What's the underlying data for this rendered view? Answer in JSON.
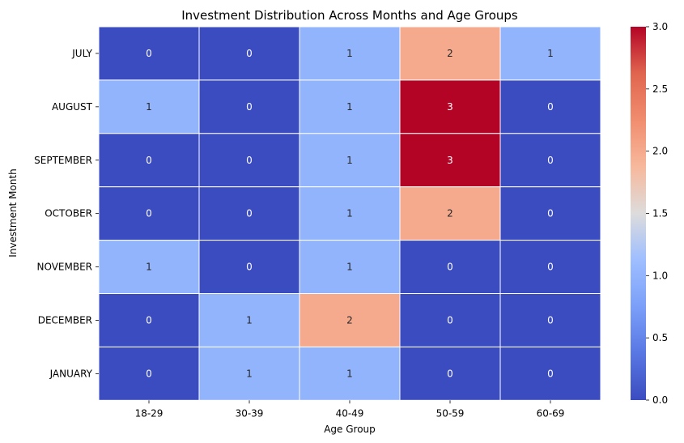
{
  "chart_data": {
    "type": "heatmap",
    "title": "Investment Distribution Across Months and Age Groups",
    "xlabel": "Age Group",
    "ylabel": "Investment Month",
    "x_categories": [
      "18-29",
      "30-39",
      "40-49",
      "50-59",
      "60-69"
    ],
    "y_categories": [
      "JULY",
      "AUGUST",
      "SEPTEMBER",
      "OCTOBER",
      "NOVEMBER",
      "DECEMBER",
      "JANUARY"
    ],
    "values": [
      [
        0,
        0,
        1,
        2,
        1
      ],
      [
        1,
        0,
        1,
        3,
        0
      ],
      [
        0,
        0,
        1,
        3,
        0
      ],
      [
        0,
        0,
        1,
        2,
        0
      ],
      [
        1,
        0,
        1,
        0,
        0
      ],
      [
        0,
        1,
        2,
        0,
        0
      ],
      [
        0,
        1,
        1,
        0,
        0
      ]
    ],
    "colormap": "coolwarm",
    "color_range": [
      0,
      3
    ],
    "colorbar_ticks": [
      "0.0",
      "0.5",
      "1.0",
      "1.5",
      "2.0",
      "2.5",
      "3.0"
    ],
    "annotate": true
  }
}
